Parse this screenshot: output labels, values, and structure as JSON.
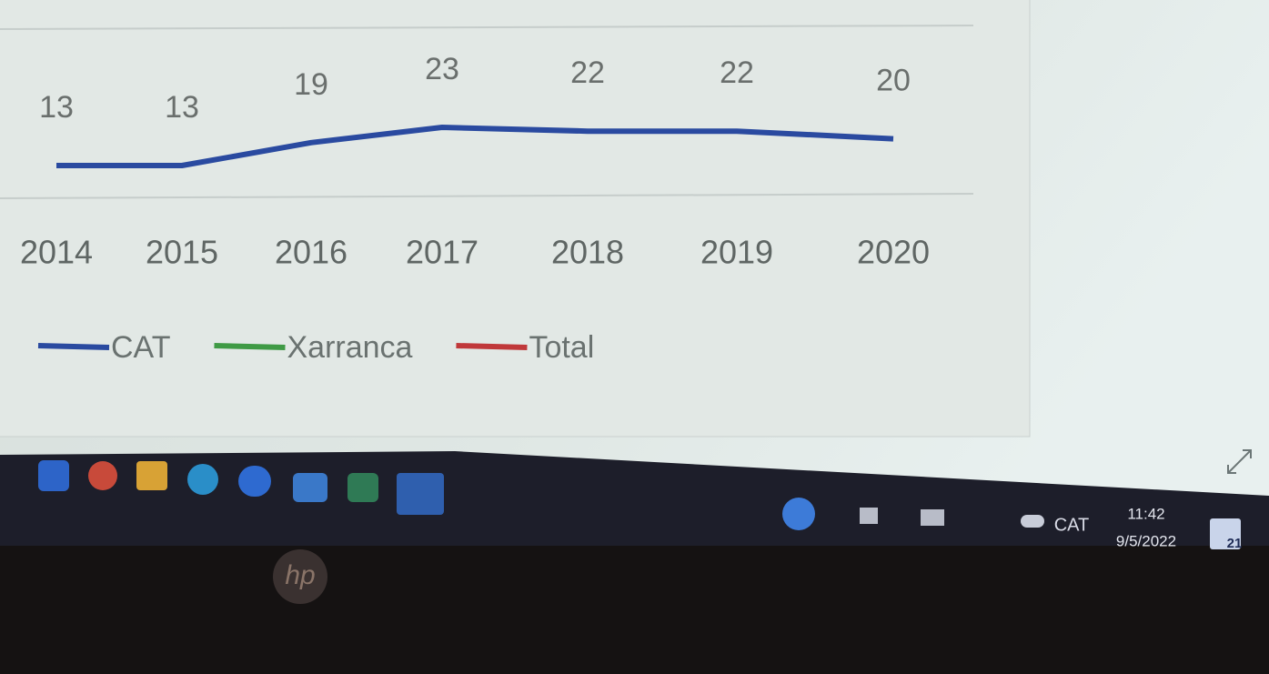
{
  "chart_data": {
    "type": "line",
    "categories": [
      "2014",
      "2015",
      "2016",
      "2017",
      "2018",
      "2019",
      "2020"
    ],
    "series": [
      {
        "name": "CAT",
        "color": "#2a4aa0",
        "values": [
          13,
          13,
          19,
          23,
          22,
          22,
          20
        ]
      },
      {
        "name": "Xarranca",
        "color": "#3f9a45",
        "values": [
          null,
          null,
          null,
          null,
          null,
          null,
          null
        ]
      },
      {
        "name": "Total",
        "color": "#c0383a",
        "values": [
          null,
          null,
          null,
          null,
          null,
          null,
          null
        ]
      }
    ]
  },
  "taskbar": {
    "language": "CAT",
    "time": "11:42",
    "date": "9/5/2022",
    "notifications": "21"
  },
  "bezel": {
    "logo": "hp"
  }
}
